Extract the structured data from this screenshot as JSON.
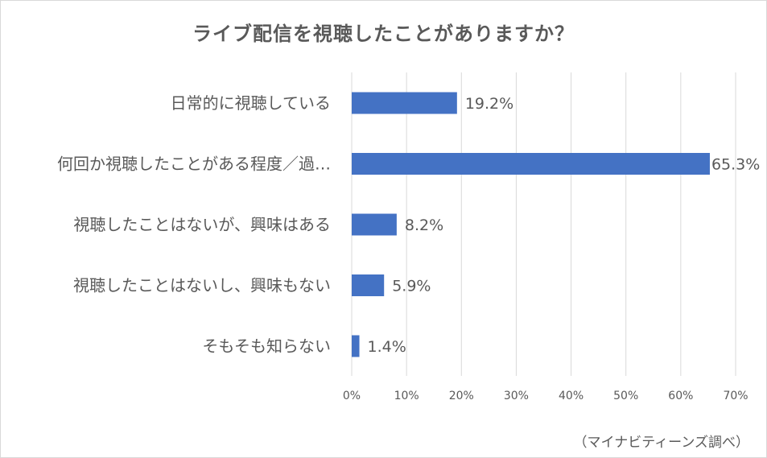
{
  "chart_data": {
    "type": "bar",
    "orientation": "horizontal",
    "title": "ライブ配信を視聴したことがありますか？",
    "categories": [
      "日常的に視聴している",
      "何回か視聴したことがある程度／過…",
      "視聴したことはないが、興味はある",
      "視聴したことはないし、興味もない",
      "そもそも知らない"
    ],
    "values": [
      19.2,
      65.3,
      8.2,
      5.9,
      1.4
    ],
    "value_labels": [
      "19.2%",
      "65.3%",
      "8.2%",
      "5.9%",
      "1.4%"
    ],
    "xlim": [
      0,
      70
    ],
    "x_ticks": [
      "0%",
      "10%",
      "20%",
      "30%",
      "40%",
      "50%",
      "60%",
      "70%"
    ],
    "xlabel": "",
    "ylabel": "",
    "grid": true,
    "bar_color": "#4472c4",
    "grid_color": "#d9d9d9",
    "text_color": "#595959"
  },
  "source_note": "（マイナビティーンズ調べ）"
}
